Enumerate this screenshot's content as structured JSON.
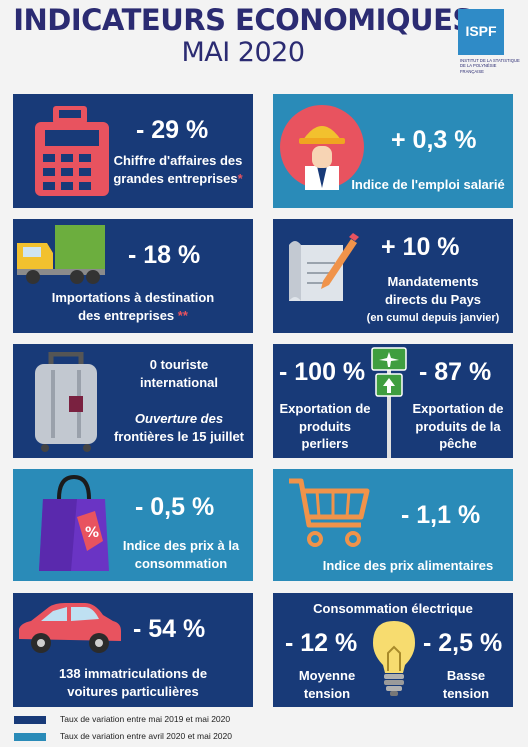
{
  "title": {
    "line1": "INDICATEURS ECONOMIQUES",
    "line2": "MAI 2020"
  },
  "logo": {
    "name": "ISPF",
    "subtitle": "INSTITUT DE LA STATISTIQUE DE LA POLYNÉSIE FRANÇAISE"
  },
  "cards": {
    "ca": {
      "value": "- 29 %",
      "label1": "Chiffre d'affaires des",
      "label2": "grandes entreprises",
      "mark": "*"
    },
    "emploi": {
      "value": "+ 0,3 %",
      "label": "Indice de l'emploi salarié"
    },
    "import": {
      "value": "- 18 %",
      "label1": "Importations à destination",
      "label2": "des entreprises",
      "mark": "**"
    },
    "mandat": {
      "value": "+ 10  %",
      "label1": "Mandatements",
      "label2": "directs du Pays",
      "label3": "(en cumul depuis janvier)"
    },
    "tourisme": {
      "line1": "0 touriste",
      "line2": "international",
      "line3": "Ouverture des",
      "line4": "frontières le 15 juillet"
    },
    "export": {
      "value1": "- 100 %",
      "label1a": "Exportation de",
      "label1b": "produits",
      "label1c": "perliers",
      "value2": "- 87 %",
      "label2a": "Exportation de",
      "label2b": "produits de la",
      "label2c": "pêche"
    },
    "prix": {
      "value": "- 0,5 %",
      "label1": "Indice des prix à la",
      "label2": "consommation"
    },
    "alim": {
      "value": "- 1,1 %",
      "label": "Indice des prix alimentaires"
    },
    "voitures": {
      "value": "- 54  %",
      "label1": "138 immatriculations de",
      "label2": "voitures particulières"
    },
    "elec": {
      "title": "Consommation électrique",
      "value1": "- 12 %",
      "label1a": "Moyenne",
      "label1b": "tension",
      "value2": "- 2,5 %",
      "label2a": "Basse",
      "label2b": "tension"
    }
  },
  "legend": {
    "navy": "Taux de variation entre mai 2019 et mai 2020",
    "teal": "Taux de variation entre avril 2020 et mai 2020"
  },
  "colors": {
    "navy": "#183a78",
    "teal": "#2a8bb8",
    "title": "#2b2b72",
    "accent_red": "#e8535f",
    "accent_orange": "#f0934a"
  },
  "icons": [
    "cash-register-icon",
    "worker-icon",
    "truck-icon",
    "document-pen-icon",
    "suitcase-icon",
    "road-sign-icon",
    "shopping-bag-icon",
    "cart-icon",
    "car-icon",
    "lightbulb-icon"
  ]
}
